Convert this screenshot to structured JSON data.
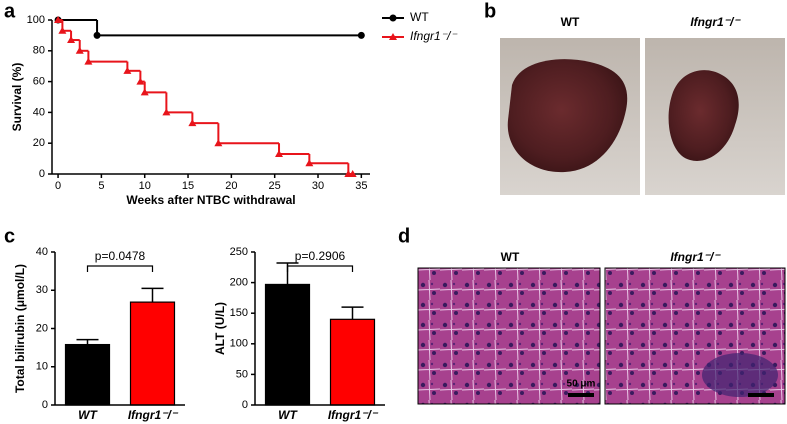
{
  "panel_labels": [
    "a",
    "b",
    "c",
    "d"
  ],
  "chart_data": [
    {
      "type": "line",
      "step": true,
      "xlabel": "Weeks after NTBC withdrawal",
      "ylabel": "Survival (%)",
      "xlim": [
        -0.7,
        36
      ],
      "xticks": [
        0,
        5,
        10,
        15,
        20,
        25,
        30,
        35
      ],
      "ylim": [
        0,
        100
      ],
      "yticks": [
        0,
        20,
        40,
        60,
        80,
        100
      ],
      "legend": "upper right",
      "series": [
        {
          "name": "WT",
          "color": "#000000",
          "marker": "circle",
          "x": [
            0,
            4.5,
            35
          ],
          "values": [
            100,
            90,
            90
          ]
        },
        {
          "name": "Ifngr1⁻/⁻",
          "color": "#e8141b",
          "marker": "triangle",
          "x": [
            0,
            0.5,
            1.5,
            2.5,
            3.5,
            8,
            9.5,
            10,
            12.5,
            15.5,
            18.5,
            25.5,
            29,
            33.5,
            34
          ],
          "values": [
            100,
            93,
            87,
            80,
            73,
            67,
            60,
            53,
            40,
            33,
            20,
            13,
            7,
            0,
            0
          ]
        }
      ]
    },
    {
      "type": "bar",
      "ylabel": "Total bilirubin (μmol/L)",
      "categories": [
        "WT",
        "Ifngr1⁻/⁻"
      ],
      "values": [
        15.8,
        26.9
      ],
      "errors": [
        1.3,
        3.6
      ],
      "colors": [
        "#000000",
        "#ff0000"
      ],
      "ylim": [
        0,
        40
      ],
      "yticks": [
        0,
        10,
        20,
        30,
        40
      ],
      "annotation": "p=0.0478"
    },
    {
      "type": "bar",
      "ylabel": "ALT (U/L)",
      "categories": [
        "WT",
        "Ifngr1⁻/⁻"
      ],
      "values": [
        197,
        140
      ],
      "errors": [
        35,
        20
      ],
      "colors": [
        "#000000",
        "#ff0000"
      ],
      "ylim": [
        0,
        250
      ],
      "yticks": [
        0,
        50,
        100,
        150,
        200,
        250
      ],
      "annotation": "p=0.2906"
    }
  ],
  "panel_b": {
    "labels": [
      "WT",
      "Ifngr1⁻/⁻"
    ]
  },
  "panel_d": {
    "labels": [
      "WT",
      "Ifngr1⁻/⁻"
    ],
    "scale_bar": "50 μm"
  }
}
